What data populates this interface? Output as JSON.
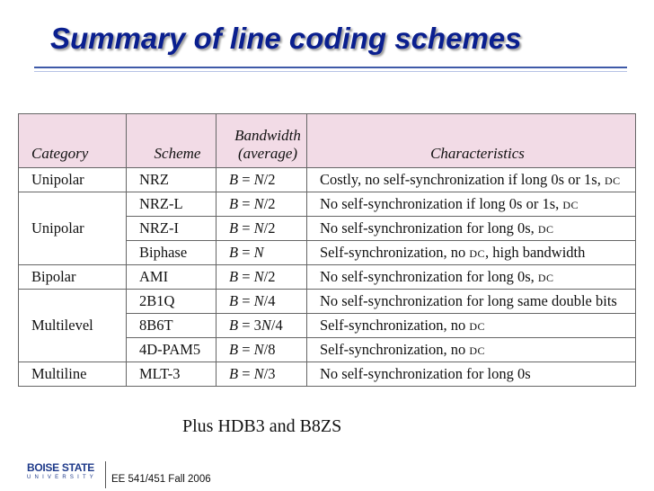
{
  "slide": {
    "title": "Summary of line coding schemes",
    "note": "Plus HDB3 and B8ZS",
    "footer": "EE 541/451 Fall 2006",
    "logo_name": "BOISE STATE",
    "logo_sub": "UNIVERSITY"
  },
  "table": {
    "headers": {
      "category": "Category",
      "scheme": "Scheme",
      "bandwidth_line1": "Bandwidth",
      "bandwidth_line2": "(average)",
      "characteristics": "Characteristics"
    },
    "rows": [
      {
        "category": "Unipolar",
        "scheme": "NRZ",
        "bandwidth": "B = N/2",
        "characteristics": "Costly, no self-synchronization if long 0s or 1s, DC"
      },
      {
        "category": "Unipolar",
        "scheme": "NRZ-L",
        "bandwidth": "B = N/2",
        "characteristics": "No self-synchronization if long 0s or 1s, DC"
      },
      {
        "category": "",
        "scheme": "NRZ-I",
        "bandwidth": "B = N/2",
        "characteristics": "No self-synchronization for long 0s, DC"
      },
      {
        "category": "",
        "scheme": "Biphase",
        "bandwidth": "B = N",
        "characteristics": "Self-synchronization, no DC, high bandwidth"
      },
      {
        "category": "Bipolar",
        "scheme": "AMI",
        "bandwidth": "B = N/2",
        "characteristics": "No self-synchronization for long 0s, DC"
      },
      {
        "category": "Multilevel",
        "scheme": "2B1Q",
        "bandwidth": "B = N/4",
        "characteristics": "No self-synchronization for long same double bits"
      },
      {
        "category": "",
        "scheme": "8B6T",
        "bandwidth": "B = 3N/4",
        "characteristics": "Self-synchronization, no DC"
      },
      {
        "category": "",
        "scheme": "4D-PAM5",
        "bandwidth": "B = N/8",
        "characteristics": "Self-synchronization, no DC"
      },
      {
        "category": "Multiline",
        "scheme": "MLT-3",
        "bandwidth": "B = N/3",
        "characteristics": "No self-synchronization for long 0s"
      }
    ]
  }
}
